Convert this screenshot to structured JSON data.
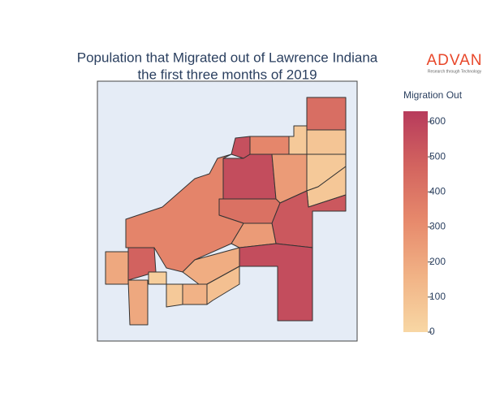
{
  "chart_data": {
    "type": "choropleth",
    "title": [
      "Population that Migrated out of Lawrence Indiana",
      "the first three months of 2019"
    ],
    "logo": {
      "name": "ADVAN",
      "tagline": "Research through Technology"
    },
    "colorbar": {
      "title": "Migration Out",
      "clim": [
        0,
        630
      ],
      "ticks": [
        0,
        100,
        200,
        300,
        400,
        500,
        600
      ],
      "colorscale": [
        "#f8d7a4",
        "#f1b386",
        "#e78a6c",
        "#d3645f",
        "#b73b5c"
      ]
    },
    "values": [
      430,
      60,
      80,
      60,
      70,
      330,
      550,
      560,
      250,
      420,
      520,
      250,
      340,
      560,
      180,
      480,
      200,
      200,
      40,
      60,
      160,
      100
    ]
  }
}
